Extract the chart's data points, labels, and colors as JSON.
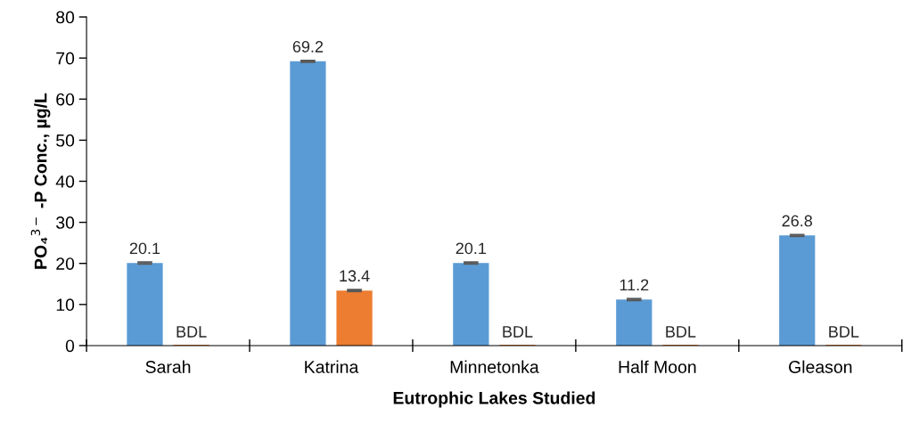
{
  "chart_data": {
    "type": "bar",
    "xlabel": "Eutrophic Lakes Studied",
    "ylabel": "PO₄$^{3−}$ -P Conc., µg/L",
    "categories": [
      "Sarah",
      "Katrina",
      "Minnetonka",
      "Half Moon",
      "Gleason"
    ],
    "series": [
      {
        "color": "#5b9bd5",
        "values": [
          20.1,
          69.2,
          20.1,
          11.2,
          26.8
        ],
        "errors": [
          0.2,
          0.2,
          0.2,
          0.2,
          0.2
        ],
        "value_labels": [
          "20.1",
          "69.2",
          "20.1",
          "11.2",
          "26.8"
        ]
      },
      {
        "color": "#ed7d31",
        "values": [
          0,
          13.4,
          0,
          0,
          0
        ],
        "errors": [
          null,
          0.2,
          null,
          null,
          null
        ],
        "value_labels": [
          "BDL",
          "13.4",
          "BDL",
          "BDL",
          "BDL"
        ]
      }
    ],
    "ylim": [
      0,
      80
    ],
    "yticks": [
      0,
      10,
      20,
      30,
      40,
      50,
      60,
      70,
      80
    ],
    "grid": false,
    "legend": false
  }
}
